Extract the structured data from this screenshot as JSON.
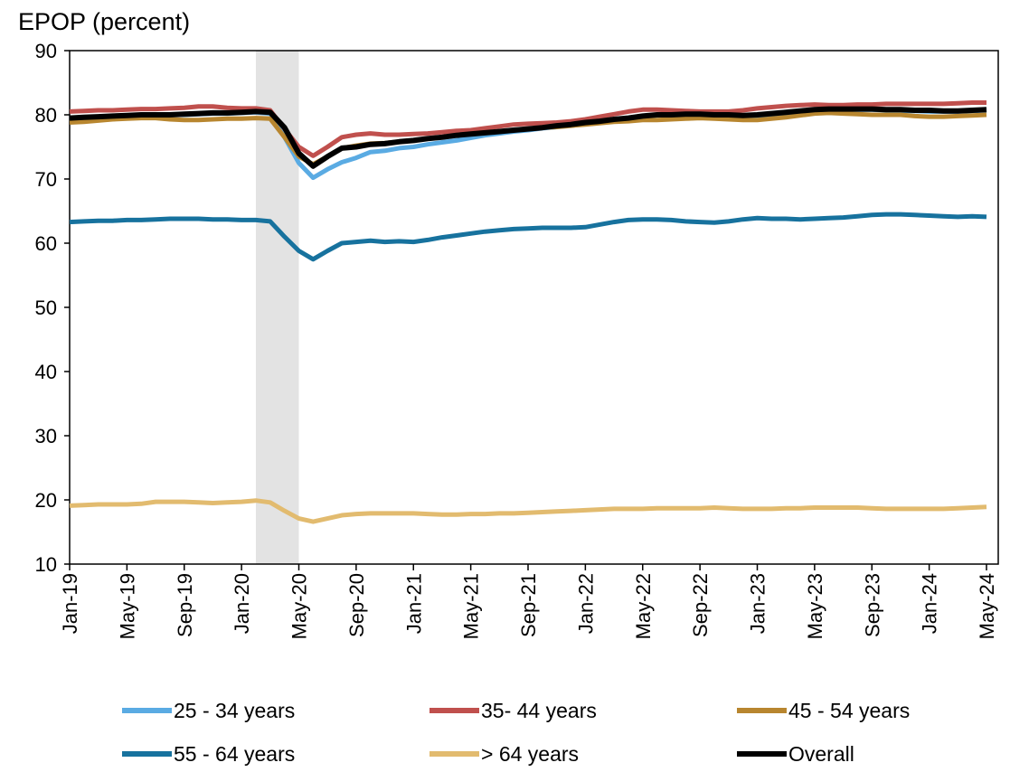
{
  "chart_data": {
    "type": "line",
    "title": "EPOP (percent)",
    "categories": [
      "Jan-19",
      null,
      null,
      null,
      "May-19",
      null,
      null,
      null,
      "Sep-19",
      null,
      null,
      null,
      "Jan-20",
      null,
      null,
      null,
      "May-20",
      null,
      null,
      null,
      "Sep-20",
      null,
      null,
      null,
      "Jan-21",
      null,
      null,
      null,
      "May-21",
      null,
      null,
      null,
      "Sep-21",
      null,
      null,
      null,
      "Jan-22",
      null,
      null,
      null,
      "May-22",
      null,
      null,
      null,
      "Sep-22",
      null,
      null,
      null,
      "Jan-23",
      null,
      null,
      null,
      "May-23",
      null,
      null,
      null,
      "Sep-23",
      null,
      null,
      null,
      "Jan-24",
      null,
      null,
      null,
      "May-24"
    ],
    "ylim": [
      10,
      90
    ],
    "yticks": [
      10,
      20,
      30,
      40,
      50,
      60,
      70,
      80,
      90
    ],
    "shaded": {
      "from": 13,
      "to": 16,
      "color": "#e3e3e3"
    },
    "series": [
      {
        "name": "25 - 34 years",
        "color": "#5aabe3",
        "values": [
          79.4,
          79.5,
          79.6,
          79.7,
          79.8,
          79.9,
          79.9,
          80.0,
          80.0,
          80.1,
          80.2,
          80.2,
          80.3,
          80.4,
          80.2,
          76.5,
          72.5,
          70.2,
          71.5,
          72.6,
          73.3,
          74.2,
          74.4,
          74.8,
          75.0,
          75.4,
          75.7,
          76.0,
          76.4,
          76.8,
          77.1,
          77.4,
          77.6,
          77.9,
          78.1,
          78.4,
          78.7,
          79.0,
          79.2,
          79.5,
          79.8,
          79.9,
          80.0,
          80.0,
          80.0,
          79.9,
          79.8,
          79.7,
          79.8,
          80.0,
          80.2,
          80.4,
          80.6,
          80.8,
          80.8,
          80.8,
          80.8,
          80.7,
          80.6,
          80.6,
          80.5,
          80.5,
          80.5,
          80.6,
          80.7
        ]
      },
      {
        "name": "35- 44 years",
        "color": "#c0504d",
        "values": [
          80.5,
          80.6,
          80.7,
          80.7,
          80.8,
          80.9,
          80.9,
          81.0,
          81.1,
          81.3,
          81.3,
          81.1,
          81.0,
          81.0,
          80.7,
          77.8,
          75.0,
          73.6,
          75.0,
          76.5,
          76.9,
          77.1,
          76.9,
          76.9,
          77.0,
          77.1,
          77.3,
          77.5,
          77.6,
          77.9,
          78.2,
          78.5,
          78.6,
          78.7,
          78.8,
          79.0,
          79.3,
          79.7,
          80.1,
          80.5,
          80.8,
          80.8,
          80.7,
          80.6,
          80.5,
          80.5,
          80.5,
          80.7,
          81.0,
          81.2,
          81.4,
          81.5,
          81.6,
          81.5,
          81.5,
          81.6,
          81.6,
          81.7,
          81.7,
          81.7,
          81.7,
          81.7,
          81.8,
          81.9,
          81.9
        ]
      },
      {
        "name": "45 - 54 years",
        "color": "#b8862f",
        "values": [
          78.8,
          78.9,
          79.1,
          79.3,
          79.4,
          79.5,
          79.5,
          79.3,
          79.2,
          79.2,
          79.3,
          79.4,
          79.4,
          79.5,
          79.4,
          76.5,
          73.5,
          72.3,
          73.5,
          74.8,
          75.2,
          75.5,
          75.6,
          75.8,
          76.0,
          76.3,
          76.5,
          76.8,
          77.0,
          77.2,
          77.4,
          77.6,
          77.8,
          78.0,
          78.1,
          78.3,
          78.5,
          78.7,
          78.9,
          79.0,
          79.2,
          79.2,
          79.3,
          79.4,
          79.5,
          79.4,
          79.3,
          79.2,
          79.2,
          79.4,
          79.6,
          79.9,
          80.2,
          80.3,
          80.2,
          80.1,
          80.0,
          80.0,
          80.0,
          79.8,
          79.7,
          79.7,
          79.8,
          79.9,
          80.0
        ]
      },
      {
        "name": "55 - 64 years",
        "color": "#17729e",
        "values": [
          63.3,
          63.4,
          63.5,
          63.5,
          63.6,
          63.6,
          63.7,
          63.8,
          63.8,
          63.8,
          63.7,
          63.7,
          63.6,
          63.6,
          63.4,
          61.0,
          58.8,
          57.5,
          58.8,
          60.0,
          60.2,
          60.4,
          60.2,
          60.3,
          60.2,
          60.5,
          60.9,
          61.2,
          61.5,
          61.8,
          62.0,
          62.2,
          62.3,
          62.4,
          62.4,
          62.4,
          62.5,
          62.9,
          63.3,
          63.6,
          63.7,
          63.7,
          63.6,
          63.4,
          63.3,
          63.2,
          63.4,
          63.7,
          63.9,
          63.8,
          63.8,
          63.7,
          63.8,
          63.9,
          64.0,
          64.2,
          64.4,
          64.5,
          64.5,
          64.4,
          64.3,
          64.2,
          64.1,
          64.2,
          64.1
        ]
      },
      {
        "name": "> 64 years",
        "color": "#e2bb6f",
        "values": [
          19.1,
          19.2,
          19.3,
          19.3,
          19.3,
          19.4,
          19.7,
          19.7,
          19.7,
          19.6,
          19.5,
          19.6,
          19.7,
          19.9,
          19.6,
          18.3,
          17.1,
          16.6,
          17.1,
          17.6,
          17.8,
          17.9,
          17.9,
          17.9,
          17.9,
          17.8,
          17.7,
          17.7,
          17.8,
          17.8,
          17.9,
          17.9,
          18.0,
          18.1,
          18.2,
          18.3,
          18.4,
          18.5,
          18.6,
          18.6,
          18.6,
          18.7,
          18.7,
          18.7,
          18.7,
          18.8,
          18.7,
          18.6,
          18.6,
          18.6,
          18.7,
          18.7,
          18.8,
          18.8,
          18.8,
          18.8,
          18.7,
          18.6,
          18.6,
          18.6,
          18.6,
          18.6,
          18.7,
          18.8,
          18.9
        ]
      },
      {
        "name": "Overall",
        "color": "#000000",
        "values": [
          79.5,
          79.6,
          79.7,
          79.8,
          79.9,
          80.0,
          80.0,
          80.0,
          80.1,
          80.2,
          80.3,
          80.3,
          80.4,
          80.5,
          80.4,
          78.0,
          74.0,
          72.0,
          73.5,
          74.8,
          75.0,
          75.4,
          75.5,
          75.8,
          76.0,
          76.3,
          76.5,
          76.8,
          77.0,
          77.2,
          77.4,
          77.6,
          77.8,
          78.0,
          78.3,
          78.5,
          78.8,
          79.0,
          79.3,
          79.5,
          79.8,
          80.0,
          80.0,
          80.1,
          80.1,
          80.0,
          80.0,
          79.9,
          80.0,
          80.2,
          80.4,
          80.6,
          80.8,
          80.9,
          80.9,
          80.9,
          80.9,
          80.8,
          80.8,
          80.7,
          80.7,
          80.6,
          80.6,
          80.7,
          80.8
        ]
      }
    ]
  }
}
